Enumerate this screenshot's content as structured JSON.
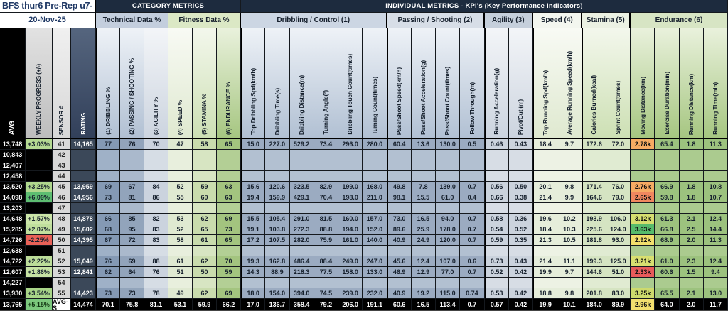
{
  "header": {
    "title": "BFS thur6 Pre-Rep u7-",
    "date": "20-Nov-25",
    "category_metrics": "CATEGORY  METRICS",
    "individual_metrics": "INDIVIDUAL METRICS - KPI's (Key Performance Indicators)",
    "technical": "Technical Data %",
    "fitness": "Fitness Data %",
    "groups": [
      {
        "label": "Dribbling / Control (1)"
      },
      {
        "label": "Passing / Shooting (2)"
      },
      {
        "label": "Agility (3)"
      },
      {
        "label": "Speed (4)"
      },
      {
        "label": "Stamina (5)"
      },
      {
        "label": "Endurance (6)"
      }
    ]
  },
  "colors": {
    "header_navy": "#1d2b3e",
    "title_text": "#1f3864",
    "positive_progress_green": "#7cc87d",
    "negative_progress_red": "#e96157",
    "moving_distance_orange": "#f6ab63",
    "moving_distance_yellow": "#f2de6c",
    "moving_distance_green": "#57bb6b",
    "moving_distance_red": "#e85b5b"
  },
  "columns": {
    "left": [
      "AVG",
      "WEEKLY PROGRESS (+/-)",
      "SENSOR #",
      "RATING"
    ],
    "category": [
      "(1) DRIBBLING %",
      "(2) PASSING / SHOOTING %",
      "(3) AGILITY %",
      "(4) SPEED %",
      "(5) STAMINA %",
      "(6) ENDURANCE %"
    ],
    "kpi": [
      "Top Dribbling Spd(km/h)",
      "Dribbling Time(s)",
      "Dribbling Distance(m)",
      "Turning Angle(°)",
      "Dribbling Touch Count(times)",
      "Turning Count(times)",
      "Pass/Shoot Speed(km/h)",
      "Pass/Shoot Acceleration(g)",
      "Pass/Shoot Count(times)",
      "Follow Through(m)",
      "Running Acceleration(g)",
      "Pivot/Cut (m)",
      "Top Running Spd(km/h)",
      "Average Running Speed(km/h)",
      "Calories Burned(kcal)",
      "Sprint Count(times)",
      "Moving Distance(km)",
      "Exercise Duration(min)",
      "Running Distance(km)",
      "Running Time(min)"
    ]
  },
  "rows": [
    {
      "avg": "13,748",
      "progress": "+3.03%",
      "progress_bg": "#b5da93",
      "sensor": "41",
      "rating": "14,165",
      "category": [
        "77",
        "76",
        "70",
        "47",
        "58",
        "65"
      ],
      "kpi": [
        "15.0",
        "227.0",
        "529.2",
        "73.4",
        "296.0",
        "280.0",
        "60.4",
        "13.6",
        "130.0",
        "0.5",
        "0.46",
        "0.43",
        "18.4",
        "9.7",
        "172.6",
        "72.0",
        "2.78k",
        "65.4",
        "1.8",
        "11.3"
      ],
      "md_bg": "#f6ab63"
    },
    {
      "avg": "10,843",
      "progress": "",
      "sensor": "42",
      "rating": "",
      "category": [],
      "kpi": []
    },
    {
      "avg": "12,407",
      "progress": "",
      "sensor": "43",
      "rating": "",
      "category": [],
      "kpi": []
    },
    {
      "avg": "12,458",
      "progress": "",
      "sensor": "44",
      "rating": "",
      "category": [],
      "kpi": []
    },
    {
      "avg": "13,520",
      "progress": "+3.25%",
      "progress_bg": "#b0d88e",
      "sensor": "45",
      "rating": "13,959",
      "category": [
        "69",
        "67",
        "84",
        "52",
        "59",
        "63"
      ],
      "kpi": [
        "15.6",
        "120.6",
        "323.5",
        "82.9",
        "199.0",
        "168.0",
        "49.8",
        "7.8",
        "139.0",
        "0.7",
        "0.56",
        "0.50",
        "20.1",
        "9.8",
        "171.4",
        "76.0",
        "2.76k",
        "66.9",
        "1.8",
        "10.8"
      ],
      "md_bg": "#f6ab63"
    },
    {
      "avg": "14,098",
      "progress": "+6.09%",
      "progress_bg": "#5dbd71",
      "sensor": "46",
      "rating": "14,956",
      "category": [
        "73",
        "81",
        "86",
        "55",
        "60",
        "63"
      ],
      "kpi": [
        "19.4",
        "159.9",
        "429.1",
        "70.4",
        "198.0",
        "211.0",
        "98.1",
        "15.5",
        "61.0",
        "0.4",
        "0.66",
        "0.38",
        "21.4",
        "9.9",
        "164.6",
        "79.0",
        "2.65k",
        "59.8",
        "1.8",
        "10.7"
      ],
      "md_bg": "#f0875f"
    },
    {
      "avg": "13,203",
      "progress": "",
      "sensor": "47",
      "rating": "",
      "category": [],
      "kpi": []
    },
    {
      "avg": "14,648",
      "progress": "+1.57%",
      "progress_bg": "#cbe5a8",
      "sensor": "48",
      "rating": "14,878",
      "category": [
        "66",
        "85",
        "82",
        "53",
        "62",
        "69"
      ],
      "kpi": [
        "15.5",
        "105.4",
        "291.0",
        "81.5",
        "160.0",
        "157.0",
        "73.0",
        "16.5",
        "94.0",
        "0.7",
        "0.58",
        "0.36",
        "19.6",
        "10.2",
        "193.9",
        "106.0",
        "3.12k",
        "61.3",
        "2.1",
        "12.4"
      ],
      "md_bg": "#d6de6f"
    },
    {
      "avg": "15,285",
      "progress": "+2.07%",
      "progress_bg": "#c0df9d",
      "sensor": "49",
      "rating": "15,602",
      "category": [
        "68",
        "95",
        "83",
        "52",
        "65",
        "73"
      ],
      "kpi": [
        "19.1",
        "103.8",
        "272.3",
        "88.8",
        "194.0",
        "152.0",
        "89.6",
        "25.9",
        "178.0",
        "0.7",
        "0.54",
        "0.52",
        "18.4",
        "10.3",
        "225.6",
        "124.0",
        "3.63k",
        "66.8",
        "2.5",
        "14.4"
      ],
      "md_bg": "#57bb6b"
    },
    {
      "avg": "14,726",
      "progress": "-2.25%",
      "progress_bg": "#e96157",
      "sensor": "50",
      "rating": "14,395",
      "category": [
        "67",
        "72",
        "83",
        "58",
        "61",
        "65"
      ],
      "kpi": [
        "17.2",
        "107.5",
        "282.0",
        "75.9",
        "161.0",
        "140.0",
        "40.9",
        "24.9",
        "120.0",
        "0.7",
        "0.59",
        "0.35",
        "21.3",
        "10.5",
        "181.8",
        "93.0",
        "2.92k",
        "68.9",
        "2.0",
        "11.3"
      ],
      "md_bg": "#f2de6c"
    },
    {
      "avg": "12,638",
      "progress": "",
      "sensor": "51",
      "rating": "",
      "category": [],
      "kpi": []
    },
    {
      "avg": "14,722",
      "progress": "+2.22%",
      "progress_bg": "#bcdd99",
      "sensor": "52",
      "rating": "15,049",
      "category": [
        "76",
        "69",
        "88",
        "61",
        "62",
        "70"
      ],
      "kpi": [
        "19.3",
        "162.8",
        "486.4",
        "88.4",
        "249.0",
        "247.0",
        "45.6",
        "12.4",
        "107.0",
        "0.6",
        "0.73",
        "0.43",
        "21.4",
        "11.1",
        "199.3",
        "125.0",
        "3.21k",
        "61.0",
        "2.3",
        "12.4"
      ],
      "md_bg": "#d8df70"
    },
    {
      "avg": "12,607",
      "progress": "+1.86%",
      "progress_bg": "#c6e2a3",
      "sensor": "53",
      "rating": "12,841",
      "category": [
        "62",
        "64",
        "76",
        "51",
        "50",
        "59"
      ],
      "kpi": [
        "14.3",
        "88.9",
        "218.3",
        "77.5",
        "158.0",
        "133.0",
        "46.9",
        "12.9",
        "77.0",
        "0.7",
        "0.52",
        "0.42",
        "19.9",
        "9.7",
        "144.6",
        "51.0",
        "2.33k",
        "60.6",
        "1.5",
        "9.4"
      ],
      "md_bg": "#e85b5b"
    },
    {
      "avg": "14,227",
      "progress": "",
      "sensor": "54",
      "rating": "",
      "category": [],
      "kpi": []
    },
    {
      "avg": "13,930",
      "progress": "+3.54%",
      "progress_bg": "#a9d588",
      "sensor": "55",
      "rating": "14,423",
      "category": [
        "73",
        "73",
        "78",
        "49",
        "62",
        "69"
      ],
      "kpi": [
        "18.0",
        "154.0",
        "394.0",
        "74.5",
        "239.0",
        "232.0",
        "40.9",
        "19.2",
        "115.0",
        "0.74",
        "0.53",
        "0.42",
        "18.8",
        "9.8",
        "201.8",
        "83.0",
        "3.25k",
        "65.5",
        "2.1",
        "13.0"
      ],
      "md_bg": "#cdda6d"
    },
    {
      "avg": "13,765",
      "progress": "+5.15%",
      "progress_bg": "#7cc87d",
      "sensor": "AVG-S",
      "rating": "14,474",
      "category": [
        "70.1",
        "75.8",
        "81.1",
        "53.1",
        "59.9",
        "66.2"
      ],
      "kpi": [
        "17.0",
        "136.7",
        "358.4",
        "79.2",
        "206.0",
        "191.1",
        "60.6",
        "16.5",
        "113.4",
        "0.7",
        "0.57",
        "0.42",
        "19.9",
        "10.1",
        "184.0",
        "89.9",
        "2.96k",
        "64.0",
        "2.0",
        "11.7"
      ],
      "md_bg": "#f2df6e",
      "footer": true
    }
  ]
}
